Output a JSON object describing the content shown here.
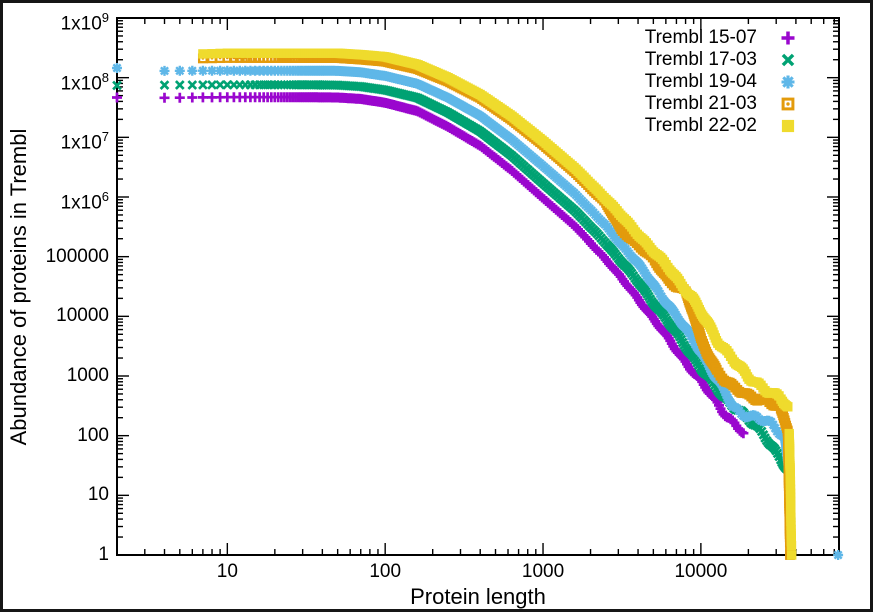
{
  "figure": {
    "background": "#ffffff",
    "border_color": "#161616",
    "frame_color": "#000000"
  },
  "chart_data": {
    "type": "scatter",
    "title": "",
    "xlabel": "Protein length",
    "ylabel": "Abundance of proteins in Trembl",
    "x_scale": "log",
    "y_scale": "log",
    "xlim": [
      2,
      75000
    ],
    "ylim": [
      1,
      1000000000
    ],
    "grid": false,
    "legend_position": "top-right",
    "x_ticks": [
      {
        "v": 10,
        "label": "10"
      },
      {
        "v": 100,
        "label": "100"
      },
      {
        "v": 1000,
        "label": "1000"
      },
      {
        "v": 10000,
        "label": "10000"
      }
    ],
    "y_ticks": [
      {
        "v": 1,
        "label": "1"
      },
      {
        "v": 10,
        "label": "10"
      },
      {
        "v": 100,
        "label": "100"
      },
      {
        "v": 1000,
        "label": "1000"
      },
      {
        "v": 10000,
        "label": "10000"
      },
      {
        "v": 100000,
        "label": "100000"
      },
      {
        "v": 1000000,
        "label": "1x10^6"
      },
      {
        "v": 10000000,
        "label": "1x10^7"
      },
      {
        "v": 100000000,
        "label": "1x10^8"
      },
      {
        "v": 1000000000,
        "label": "1x10^9"
      }
    ],
    "series": [
      {
        "name": "Trembl 15-07",
        "color": "#9a07ce",
        "marker": "plus",
        "points": [
          [
            2,
            46500000
          ],
          [
            4,
            46000000
          ],
          [
            10,
            47000000
          ],
          [
            30,
            47000000
          ],
          [
            50,
            46500000
          ],
          [
            70,
            44000000
          ],
          [
            100,
            38000000
          ],
          [
            160,
            27500000
          ],
          [
            250,
            15000000
          ],
          [
            400,
            7200000
          ],
          [
            630,
            2800000
          ],
          [
            1000,
            950000
          ],
          [
            1600,
            320000
          ],
          [
            2500,
            90000
          ],
          [
            4000,
            20000
          ],
          [
            6300,
            4000
          ],
          [
            10000,
            800
          ],
          [
            14000,
            250
          ],
          [
            18600,
            110
          ]
        ],
        "extra_points": []
      },
      {
        "name": "Trembl 17-03",
        "color": "#00a273",
        "marker": "cross",
        "points": [
          [
            2,
            74000000
          ],
          [
            4,
            75000000
          ],
          [
            10,
            76000000
          ],
          [
            30,
            76000000
          ],
          [
            50,
            75000000
          ],
          [
            70,
            71000000
          ],
          [
            100,
            62000000
          ],
          [
            160,
            46000000
          ],
          [
            250,
            26000000
          ],
          [
            400,
            12600000
          ],
          [
            630,
            5000000
          ],
          [
            1000,
            1700000
          ],
          [
            1600,
            580000
          ],
          [
            2500,
            170000
          ],
          [
            4000,
            38000
          ],
          [
            6300,
            7600
          ],
          [
            10000,
            1400
          ],
          [
            14000,
            420
          ],
          [
            18000,
            260
          ],
          [
            25000,
            100
          ],
          [
            31600,
            45
          ],
          [
            35900,
            26
          ],
          [
            36500,
            3
          ],
          [
            36700,
            1
          ]
        ],
        "extra_points": []
      },
      {
        "name": "Trembl 19-04",
        "color": "#5fb7e8",
        "marker": "asterisk",
        "points": [
          [
            2,
            145000000
          ],
          [
            4,
            130000000
          ],
          [
            10,
            131000000
          ],
          [
            30,
            131000000
          ],
          [
            50,
            130000000
          ],
          [
            70,
            123000000
          ],
          [
            100,
            107000000
          ],
          [
            160,
            79000000
          ],
          [
            250,
            46000000
          ],
          [
            400,
            23000000
          ],
          [
            630,
            9300000
          ],
          [
            1000,
            3300000
          ],
          [
            1600,
            1120000
          ],
          [
            2500,
            330000
          ],
          [
            4000,
            76000
          ],
          [
            6300,
            15000
          ],
          [
            10000,
            2600
          ],
          [
            14000,
            560
          ],
          [
            16000,
            300
          ],
          [
            18000,
            235
          ],
          [
            22400,
            210
          ],
          [
            28200,
            150
          ],
          [
            34000,
            90
          ],
          [
            36300,
            25
          ],
          [
            37000,
            4
          ]
        ],
        "extra_points": [
          [
            74000,
            1
          ]
        ]
      },
      {
        "name": "Trembl 21-03",
        "color": "#e39b0c",
        "marker": "square-open",
        "points": [
          [
            7,
            210000000
          ],
          [
            10,
            214000000
          ],
          [
            30,
            214000000
          ],
          [
            50,
            214000000
          ],
          [
            70,
            202000000
          ],
          [
            100,
            186000000
          ],
          [
            160,
            140000000
          ],
          [
            250,
            87000000
          ],
          [
            400,
            46000000
          ],
          [
            630,
            20000000
          ],
          [
            1000,
            7600000
          ],
          [
            1600,
            2600000
          ],
          [
            2500,
            800000
          ],
          [
            3160,
            280000
          ],
          [
            4000,
            160000
          ],
          [
            5000,
            90000
          ],
          [
            6300,
            40000
          ],
          [
            8000,
            26000
          ],
          [
            8900,
            12000
          ],
          [
            10000,
            4000
          ],
          [
            12600,
            1250
          ],
          [
            16000,
            630
          ],
          [
            20000,
            460
          ],
          [
            26300,
            400
          ],
          [
            31600,
            280
          ],
          [
            35500,
            125
          ],
          [
            36600,
            2
          ],
          [
            36700,
            1
          ]
        ],
        "extra_points": []
      },
      {
        "name": "Trembl 22-02",
        "color": "#efdb2d",
        "marker": "square-filled",
        "points": [
          [
            7,
            250000000
          ],
          [
            10,
            257000000
          ],
          [
            30,
            257000000
          ],
          [
            50,
            257000000
          ],
          [
            70,
            243000000
          ],
          [
            100,
            224000000
          ],
          [
            160,
            166000000
          ],
          [
            250,
            100000000
          ],
          [
            400,
            52000000
          ],
          [
            630,
            23000000
          ],
          [
            1000,
            8700000
          ],
          [
            1600,
            3000000
          ],
          [
            2500,
            930000
          ],
          [
            4000,
            240000
          ],
          [
            6300,
            63000
          ],
          [
            8900,
            20000
          ],
          [
            12600,
            4000
          ],
          [
            16000,
            2000
          ],
          [
            20000,
            900
          ],
          [
            25000,
            630
          ],
          [
            31600,
            460
          ],
          [
            35900,
            280
          ],
          [
            36900,
            16
          ],
          [
            37300,
            2
          ],
          [
            37600,
            1
          ]
        ],
        "extra_points": []
      }
    ]
  }
}
